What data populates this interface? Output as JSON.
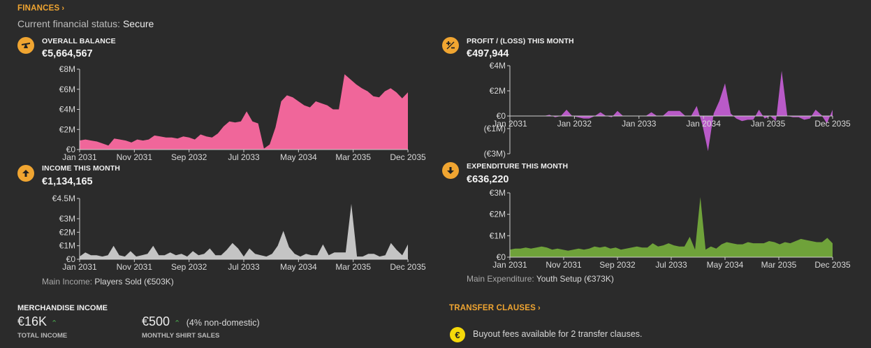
{
  "header": {
    "title": "FINANCES",
    "status_label": "Current financial status:",
    "status_value": "Secure"
  },
  "panels": [
    {
      "id": "balance",
      "title": "OVERALL BALANCE",
      "value": "€5,664,567",
      "icon": "balance-scale-icon",
      "chart_data": {
        "type": "area",
        "color": "#f0669a",
        "x_tick_labels": [
          "Jan 2031",
          "Nov 2031",
          "Sep 2032",
          "Jul 2033",
          "May 2034",
          "Mar 2035",
          "Dec 2035"
        ],
        "y_tick_labels": [
          "€0",
          "€2M",
          "€4M",
          "€6M",
          "€8M"
        ],
        "ylim": [
          0,
          8
        ],
        "values": [
          0.9,
          1.0,
          0.9,
          0.8,
          0.6,
          0.4,
          1.1,
          1.0,
          0.9,
          0.7,
          1.0,
          0.9,
          1.0,
          1.4,
          1.3,
          1.2,
          1.2,
          1.1,
          1.3,
          1.2,
          1.0,
          1.5,
          1.3,
          1.2,
          1.6,
          2.3,
          2.8,
          2.7,
          2.8,
          3.8,
          2.8,
          2.6,
          0.1,
          0.5,
          2.2,
          4.8,
          5.4,
          5.2,
          4.8,
          4.4,
          4.2,
          4.8,
          4.6,
          4.4,
          4.0,
          4.0,
          7.5,
          7.0,
          6.5,
          6.1,
          5.8,
          5.3,
          5.2,
          5.8,
          6.1,
          5.7,
          5.1,
          5.7
        ]
      }
    },
    {
      "id": "profit",
      "title": "PROFIT / (LOSS) THIS MONTH",
      "value": "€497,944",
      "icon": "plus-minus-icon",
      "chart_data": {
        "type": "area",
        "color": "#b95ac8",
        "x_tick_labels": [
          "Jan 2031",
          "Jan 2032",
          "Jan 2033",
          "Jan 2034",
          "Jan 2035",
          "Dec 2035"
        ],
        "y_tick_labels": [
          "(€3M)",
          "(€1M)",
          "€0",
          "€2M",
          "€4M"
        ],
        "ylim": [
          -3,
          4
        ],
        "values": [
          0.0,
          0.0,
          0.0,
          0.0,
          0.0,
          0.0,
          0.0,
          0.1,
          -0.1,
          0.0,
          0.5,
          0.0,
          -0.1,
          -0.2,
          -0.2,
          0.0,
          0.3,
          0.0,
          -0.1,
          0.4,
          0.0,
          0.0,
          0.0,
          0.0,
          0.0,
          0.3,
          0.0,
          0.0,
          0.4,
          0.4,
          0.4,
          0.0,
          0.0,
          0.8,
          -0.7,
          -2.8,
          0.2,
          1.2,
          2.6,
          0.2,
          -0.2,
          -0.4,
          -0.3,
          -0.3,
          0.5,
          -0.2,
          0.0,
          -0.4,
          3.6,
          0.0,
          -0.1,
          -0.1,
          -0.3,
          -0.2,
          0.5,
          0.1,
          -0.6,
          0.5
        ]
      }
    },
    {
      "id": "income",
      "title": "INCOME THIS MONTH",
      "value": "€1,134,165",
      "icon": "arrow-up-icon",
      "meta_label": "Main Income:",
      "meta_value": "Players Sold (€503K)",
      "chart_data": {
        "type": "area",
        "color": "#c4c4c4",
        "x_tick_labels": [
          "Jan 2031",
          "Nov 2031",
          "Sep 2032",
          "Jul 2033",
          "May 2034",
          "Mar 2035",
          "Dec 2035"
        ],
        "y_tick_labels": [
          "€0",
          "€1M",
          "€2M",
          "€3M",
          "€4.5M"
        ],
        "ylim": [
          0,
          4.5
        ],
        "values": [
          0.2,
          0.5,
          0.3,
          0.3,
          0.2,
          0.3,
          1.0,
          0.3,
          0.2,
          0.6,
          0.2,
          0.3,
          0.4,
          1.0,
          0.3,
          0.3,
          0.5,
          0.3,
          0.4,
          0.2,
          0.6,
          0.3,
          0.4,
          0.8,
          0.3,
          0.3,
          0.7,
          1.2,
          0.8,
          0.2,
          0.8,
          0.4,
          0.3,
          0.2,
          0.4,
          1.0,
          2.1,
          0.9,
          0.4,
          0.2,
          0.4,
          0.3,
          0.3,
          1.1,
          0.3,
          0.5,
          0.5,
          0.5,
          4.1,
          0.2,
          0.2,
          0.4,
          0.4,
          0.2,
          0.3,
          1.2,
          0.7,
          0.3,
          1.1
        ]
      }
    },
    {
      "id": "expenditure",
      "title": "EXPENDITURE THIS MONTH",
      "value": "€636,220",
      "icon": "arrow-down-icon",
      "meta_label": "Main Expenditure:",
      "meta_value": "Youth Setup (€373K)",
      "chart_data": {
        "type": "area",
        "color": "#6fa23a",
        "x_tick_labels": [
          "Jan 2031",
          "Nov 2031",
          "Sep 2032",
          "Jul 2033",
          "May 2034",
          "Mar 2035",
          "Dec 2035"
        ],
        "y_tick_labels": [
          "€0",
          "€1M",
          "€2M",
          "€3M"
        ],
        "ylim": [
          0,
          3
        ],
        "values": [
          0.35,
          0.4,
          0.4,
          0.45,
          0.4,
          0.45,
          0.5,
          0.45,
          0.35,
          0.4,
          0.35,
          0.3,
          0.35,
          0.4,
          0.35,
          0.4,
          0.5,
          0.45,
          0.5,
          0.4,
          0.45,
          0.35,
          0.4,
          0.45,
          0.5,
          0.45,
          0.45,
          0.65,
          0.5,
          0.55,
          0.65,
          0.55,
          0.5,
          0.5,
          0.95,
          0.35,
          2.8,
          0.35,
          0.5,
          0.4,
          0.6,
          0.7,
          0.65,
          0.6,
          0.6,
          0.7,
          0.65,
          0.65,
          0.65,
          0.75,
          0.7,
          0.6,
          0.7,
          0.65,
          0.75,
          0.85,
          0.8,
          0.75,
          0.7,
          0.7,
          0.9,
          0.65
        ]
      }
    }
  ],
  "merchandise": {
    "title": "MERCHANDISE INCOME",
    "total_value": "€16K",
    "total_label": "TOTAL INCOME",
    "shirt_value": "€500",
    "shirt_note": "(4% non-domestic)",
    "shirt_label": "MONTHLY SHIRT SALES"
  },
  "transfer_clauses": {
    "title": "TRANSFER CLAUSES",
    "note": "Buyout fees available for 2 transfer clauses."
  }
}
